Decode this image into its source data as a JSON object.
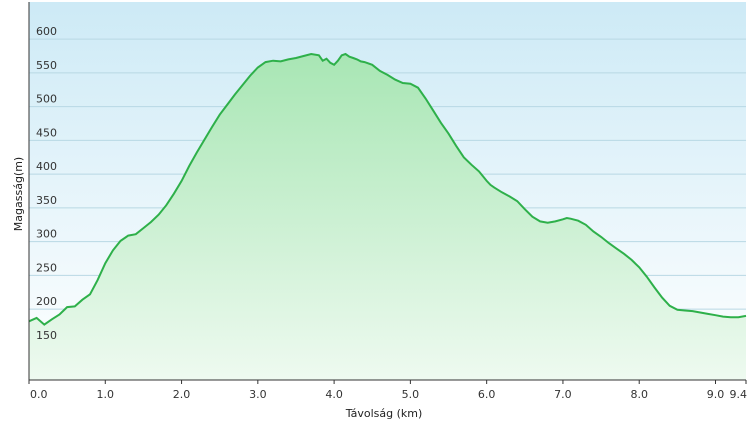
{
  "chart_data": {
    "type": "area",
    "xlabel": "Távolság  (km)",
    "ylabel": "Magasság(m)",
    "xlim": [
      0,
      9.4
    ],
    "ylim": [
      95,
      655
    ],
    "grid": true,
    "x_ticks": [
      {
        "value": 0,
        "label": "0.0"
      },
      {
        "value": 1,
        "label": "1.0"
      },
      {
        "value": 2,
        "label": "2.0"
      },
      {
        "value": 3,
        "label": "3.0"
      },
      {
        "value": 4,
        "label": "4.0"
      },
      {
        "value": 5,
        "label": "5.0"
      },
      {
        "value": 6,
        "label": "6.0"
      },
      {
        "value": 7,
        "label": "7.0"
      },
      {
        "value": 8,
        "label": "8.0"
      },
      {
        "value": 9,
        "label": "9.0"
      },
      {
        "value": 9.4,
        "label": "9.4"
      }
    ],
    "y_ticks": [
      {
        "value": 150,
        "label": "150"
      },
      {
        "value": 200,
        "label": "200"
      },
      {
        "value": 250,
        "label": "250"
      },
      {
        "value": 300,
        "label": "300"
      },
      {
        "value": 350,
        "label": "350"
      },
      {
        "value": 400,
        "label": "400"
      },
      {
        "value": 450,
        "label": "450"
      },
      {
        "value": 500,
        "label": "500"
      },
      {
        "value": 550,
        "label": "550"
      },
      {
        "value": 600,
        "label": "600"
      }
    ],
    "colors": {
      "line": "#2eb04a",
      "fill_top": "#a8e6b4",
      "fill_bottom": "#eefaf0",
      "bg_top": "#cdeaf6",
      "bg_bottom": "#ffffff",
      "grid": "#b8d8e4"
    },
    "x": [
      0,
      0.1,
      0.2,
      0.3,
      0.4,
      0.5,
      0.6,
      0.7,
      0.8,
      0.9,
      1.0,
      1.1,
      1.2,
      1.3,
      1.4,
      1.5,
      1.6,
      1.7,
      1.8,
      1.9,
      2.0,
      2.1,
      2.2,
      2.3,
      2.4,
      2.5,
      2.6,
      2.7,
      2.8,
      2.9,
      3.0,
      3.1,
      3.2,
      3.3,
      3.4,
      3.5,
      3.6,
      3.7,
      3.8,
      3.85,
      3.9,
      3.95,
      4.0,
      4.05,
      4.1,
      4.15,
      4.2,
      4.25,
      4.3,
      4.35,
      4.4,
      4.5,
      4.6,
      4.7,
      4.8,
      4.9,
      5.0,
      5.1,
      5.2,
      5.3,
      5.4,
      5.5,
      5.6,
      5.7,
      5.8,
      5.9,
      6.0,
      6.05,
      6.1,
      6.2,
      6.3,
      6.4,
      6.5,
      6.6,
      6.7,
      6.8,
      6.9,
      7.0,
      7.05,
      7.1,
      7.2,
      7.3,
      7.4,
      7.5,
      7.6,
      7.7,
      7.8,
      7.9,
      8.0,
      8.1,
      8.2,
      8.3,
      8.4,
      8.5,
      8.6,
      8.7,
      8.8,
      8.9,
      9.0,
      9.1,
      9.2,
      9.3,
      9.4
    ],
    "y": [
      182,
      187,
      177,
      185,
      192,
      203,
      204,
      214,
      222,
      243,
      268,
      287,
      301,
      309,
      311,
      320,
      329,
      340,
      354,
      371,
      390,
      412,
      432,
      451,
      470,
      488,
      503,
      518,
      532,
      546,
      558,
      566,
      568,
      567,
      570,
      572,
      575,
      578,
      576,
      568,
      571,
      565,
      562,
      568,
      576,
      578,
      574,
      572,
      570,
      567,
      566,
      562,
      553,
      547,
      540,
      535,
      534,
      528,
      512,
      494,
      476,
      460,
      442,
      425,
      414,
      404,
      390,
      384,
      380,
      373,
      367,
      360,
      348,
      337,
      330,
      328,
      330,
      333,
      335,
      334,
      331,
      325,
      315,
      307,
      298,
      290,
      282,
      273,
      262,
      248,
      232,
      217,
      205,
      199,
      198,
      197,
      195,
      193,
      191,
      189,
      188,
      188,
      190
    ]
  }
}
